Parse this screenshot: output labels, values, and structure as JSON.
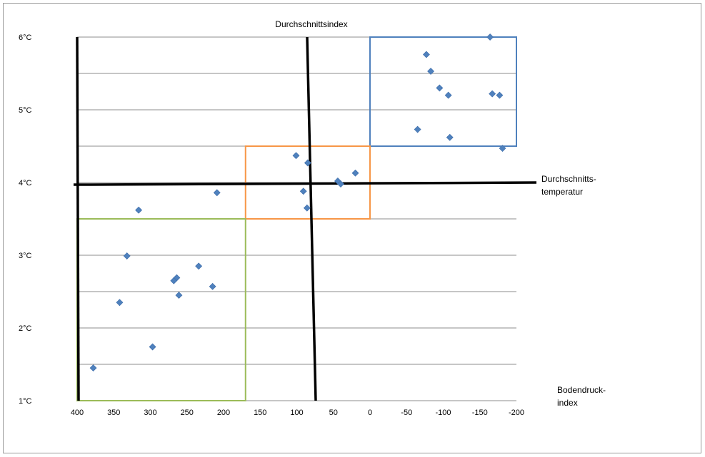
{
  "chart_data": {
    "type": "scatter",
    "title": "Durchschnittsindex",
    "xlabel": "Bodendruck-index",
    "xlabel_lines": [
      "Bodendruck-",
      "index"
    ],
    "ylabel_right_lines": [
      "Durchschnitts-",
      "temperatur"
    ],
    "xlim": [
      400,
      -200
    ],
    "ylim": [
      1,
      6
    ],
    "x_reversed": true,
    "x_ticks": [
      400,
      350,
      300,
      250,
      200,
      150,
      100,
      50,
      0,
      -50,
      -100,
      -150,
      -200
    ],
    "y_ticks": [
      1,
      2,
      3,
      4,
      5,
      6
    ],
    "y_tick_labels": [
      "1°C",
      "2°C",
      "3°C",
      "4°C",
      "5°C",
      "6°C"
    ],
    "grid_y_step": 0.5,
    "reference_lines": {
      "x_mean": 80,
      "y_mean": 3.97
    },
    "series": [
      {
        "name": "Datenpunkte",
        "color": "#4f81bd",
        "points": [
          [
            -164,
            6.0
          ],
          [
            -77,
            5.76
          ],
          [
            -83,
            5.53
          ],
          [
            -95,
            5.3
          ],
          [
            -107,
            5.2
          ],
          [
            -167,
            5.22
          ],
          [
            -177,
            5.2
          ],
          [
            -65,
            4.73
          ],
          [
            -109,
            4.62
          ],
          [
            -181,
            4.47
          ],
          [
            101,
            4.37
          ],
          [
            85,
            4.27
          ],
          [
            20,
            4.13
          ],
          [
            44,
            4.02
          ],
          [
            40,
            3.98
          ],
          [
            91,
            3.88
          ],
          [
            86,
            3.65
          ],
          [
            209,
            3.86
          ],
          [
            316,
            3.62
          ],
          [
            332,
            2.99
          ],
          [
            234,
            2.85
          ],
          [
            264,
            2.69
          ],
          [
            268,
            2.65
          ],
          [
            261,
            2.45
          ],
          [
            215,
            2.57
          ],
          [
            342,
            2.35
          ],
          [
            297,
            1.74
          ],
          [
            378,
            1.45
          ]
        ]
      }
    ],
    "boxes": [
      {
        "name": "blue-box",
        "color": "#4f81bd",
        "x": [
          0,
          -200
        ],
        "y": [
          4.5,
          6.0
        ]
      },
      {
        "name": "orange-box",
        "color": "#f79646",
        "x": [
          170,
          0
        ],
        "y": [
          3.5,
          4.5
        ]
      },
      {
        "name": "green-box",
        "color": "#9bbb59",
        "x": [
          400,
          170
        ],
        "y": [
          1.0,
          3.5
        ]
      }
    ]
  }
}
